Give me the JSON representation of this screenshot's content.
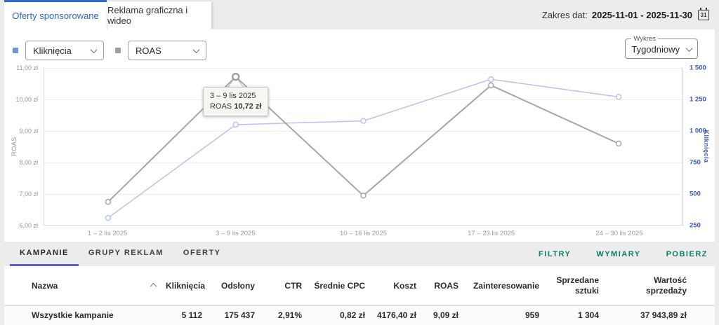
{
  "header": {
    "tabs": [
      {
        "label": "Oferty sponsorowane"
      },
      {
        "label": "Reklama graficzna i wideo"
      }
    ],
    "date_label": "Zakres dat:",
    "date_value": "2025-11-01 - 2025-11-30",
    "calendar_day": "31"
  },
  "controls": {
    "metric_primary": {
      "value": "Kliknięcia",
      "chip_color": "#7096d4"
    },
    "metric_secondary": {
      "value": "ROAS",
      "chip_color": "#9e9e9e"
    },
    "interval": {
      "label": "Wykres",
      "value": "Tygodniowy"
    }
  },
  "chart_data": {
    "type": "line",
    "categories": [
      "1 – 2 lis 2025",
      "3 – 9 lis 2025",
      "10 – 16 lis 2025",
      "17 – 23 lis 2025",
      "24 – 30 lis 2025"
    ],
    "series": [
      {
        "name": "Kliknięcia",
        "axis": "right",
        "color": "#b7c3ea",
        "values": [
          310,
          1050,
          1080,
          1410,
          1270
        ]
      },
      {
        "name": "ROAS",
        "axis": "left",
        "color": "#a6a6a6",
        "values": [
          6.75,
          10.72,
          6.95,
          10.45,
          8.6
        ]
      }
    ],
    "left_axis": {
      "label": "ROAS",
      "min": 6,
      "max": 11,
      "tick_labels": [
        "11,00 zł",
        "10,00 zł",
        "9,00 zł",
        "8,00 zł",
        "7,00 zł",
        "6,00 zł"
      ]
    },
    "right_axis": {
      "label": "Kliknięcia",
      "min": 250,
      "max": 1500,
      "tick_labels": [
        "1 500",
        "1 250",
        "1 000",
        "750",
        "500",
        "250"
      ]
    },
    "grid": true,
    "legend_position": "none",
    "tooltip": {
      "series": "ROAS",
      "index": 1,
      "title": "3 – 9 lis 2025",
      "metric": "ROAS",
      "value": "10,72 zł"
    }
  },
  "table_section": {
    "tabs": [
      "KAMPANIE",
      "GRUPY REKLAM",
      "OFERTY"
    ],
    "active_tab": "KAMPANIE",
    "actions": [
      "FILTRY",
      "WYMIARY",
      "POBIERZ"
    ],
    "columns": [
      "Nazwa",
      "Kliknięcia",
      "Odsłony",
      "CTR",
      "Średnie CPC",
      "Koszt",
      "ROAS",
      "Zainteresowanie",
      "Sprzedane sztuki",
      "Wartość sprzedaży"
    ],
    "rows": [
      {
        "cells": [
          "Wszystkie kampanie",
          "5 112",
          "175 437",
          "2,91%",
          "0,82 zł",
          "4176,40 zł",
          "9,09 zł",
          "959",
          "1 304",
          "37 943,89 zł"
        ]
      }
    ]
  },
  "colors": {
    "accent_blue": "#2d67d2",
    "axis_blue": "#3a57c2",
    "action_teal": "#0d7c68",
    "active_tab_underline": "#5a61c9",
    "band_gray": "#ececec"
  }
}
